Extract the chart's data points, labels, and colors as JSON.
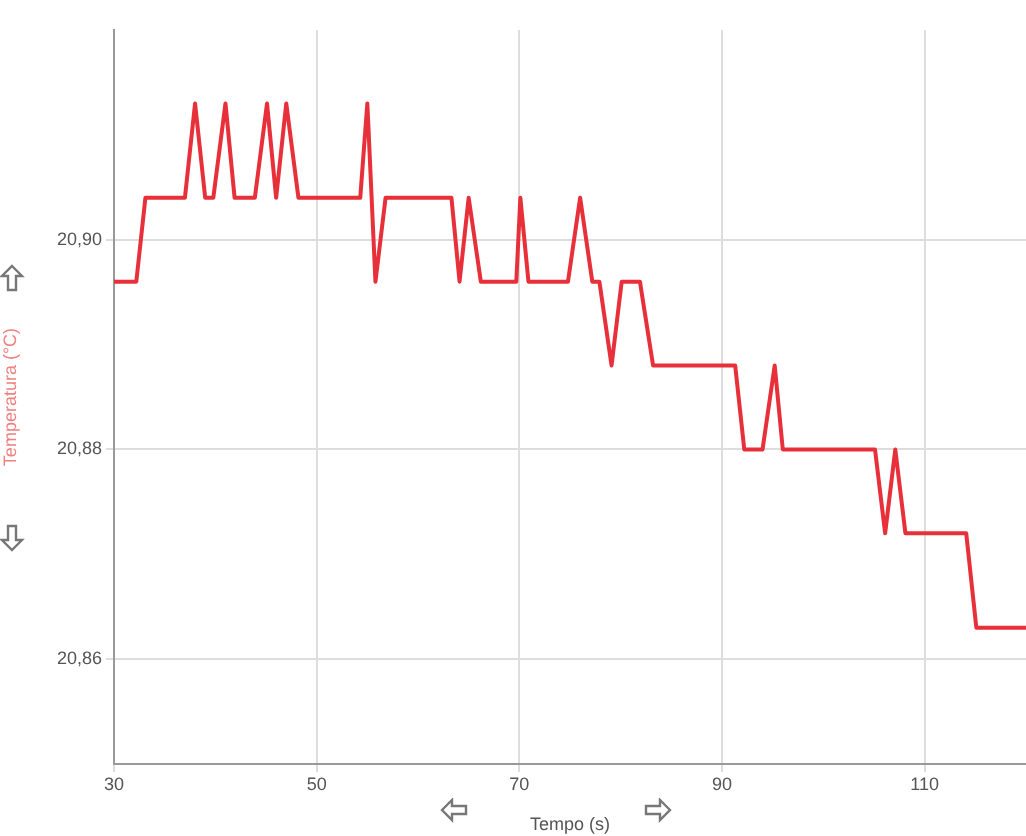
{
  "chart_data": {
    "type": "line",
    "xlabel": "Tempo (s)",
    "ylabel": "Temperatura (°C)",
    "x": [
      30,
      32.2,
      33.1,
      37,
      38,
      39,
      39.8,
      41,
      41.9,
      43.9,
      45.1,
      46,
      47,
      48.2,
      54.3,
      55,
      55.8,
      56.8,
      63.3,
      64.1,
      65,
      66.2,
      69.7,
      70.1,
      70.9,
      74.8,
      76,
      77.2,
      77.9,
      79.1,
      80.1,
      81.9,
      83.2,
      91.3,
      92.2,
      94,
      95.2,
      96,
      105.1,
      106.1,
      107.1,
      108.1,
      114.1,
      115.1,
      120
    ],
    "series": [
      {
        "color": "#e8303a",
        "values": [
          20.896,
          20.896,
          20.904,
          20.904,
          20.913,
          20.904,
          20.904,
          20.913,
          20.904,
          20.904,
          20.913,
          20.904,
          20.913,
          20.904,
          20.904,
          20.913,
          20.896,
          20.904,
          20.904,
          20.896,
          20.904,
          20.896,
          20.896,
          20.904,
          20.896,
          20.896,
          20.904,
          20.896,
          20.896,
          20.888,
          20.896,
          20.896,
          20.888,
          20.888,
          20.88,
          20.88,
          20.888,
          20.88,
          20.88,
          20.872,
          20.88,
          20.872,
          20.872,
          20.863,
          20.863
        ]
      }
    ],
    "xlim": [
      30,
      120
    ],
    "xticks": [
      30,
      50,
      70,
      90,
      110
    ],
    "ylim": [
      20.85,
      20.92
    ],
    "yticks": [
      {
        "value": 20.9,
        "label": "20,90"
      },
      {
        "value": 20.88,
        "label": "20,88"
      },
      {
        "value": 20.86,
        "label": "20,86"
      }
    ],
    "grid": true,
    "legend": false,
    "marker": "none",
    "line_style": "solid"
  }
}
